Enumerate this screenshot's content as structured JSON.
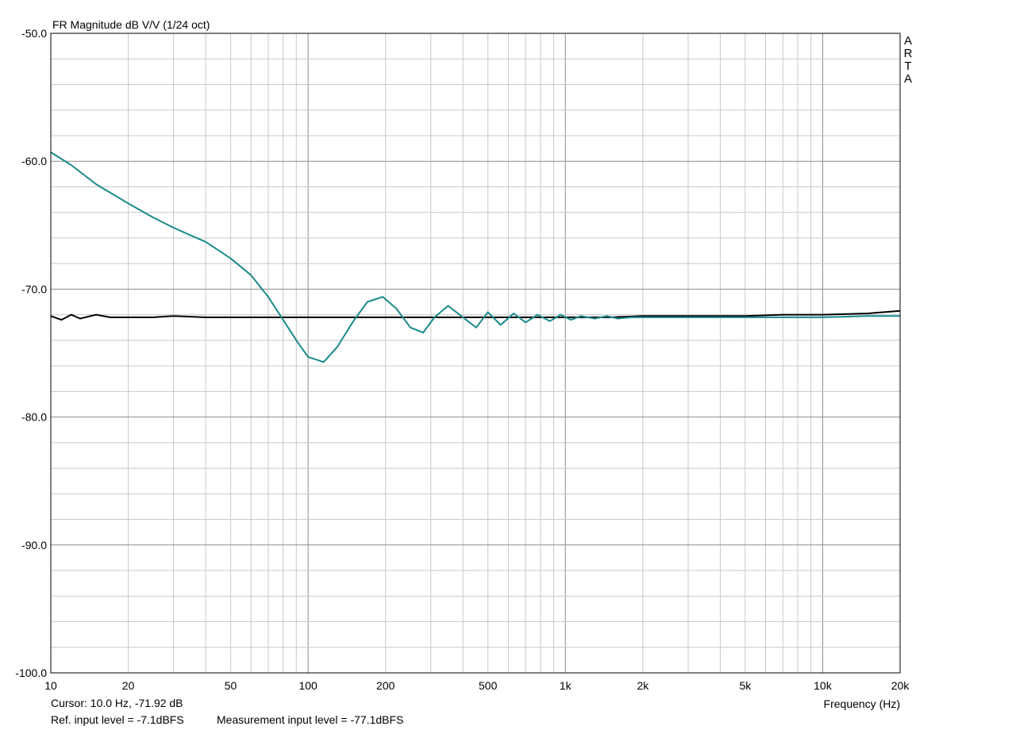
{
  "chart_data": {
    "type": "line",
    "title": "FR Magnitude dB V/V (1/24 oct)",
    "xlabel": "Frequency (Hz)",
    "ylabel": "",
    "x_scale": "log",
    "xlim": [
      10,
      20000
    ],
    "ylim": [
      -100,
      -50
    ],
    "grid": true,
    "x_ticks": [
      10,
      20,
      50,
      100,
      200,
      500,
      1000,
      2000,
      5000,
      10000,
      20000
    ],
    "x_tick_labels": [
      "10",
      "20",
      "50",
      "100",
      "200",
      "500",
      "1k",
      "2k",
      "5k",
      "10k",
      "20k"
    ],
    "y_ticks": [
      -100,
      -90,
      -80,
      -70,
      -60,
      -50
    ],
    "y_tick_labels": [
      "-100.0",
      "-90.0",
      "-80.0",
      "-70.0",
      "-60.0",
      "-50.0"
    ],
    "series": [
      {
        "color": "#000000",
        "x": [
          10,
          11,
          12,
          13,
          15,
          17,
          20,
          25,
          30,
          40,
          50,
          70,
          100,
          150,
          200,
          300,
          500,
          700,
          1000,
          1500,
          2000,
          3000,
          5000,
          7000,
          10000,
          15000,
          20000
        ],
        "y": [
          -72.1,
          -72.4,
          -72.0,
          -72.3,
          -72.0,
          -72.2,
          -72.2,
          -72.2,
          -72.1,
          -72.2,
          -72.2,
          -72.2,
          -72.2,
          -72.2,
          -72.2,
          -72.2,
          -72.2,
          -72.2,
          -72.2,
          -72.2,
          -72.1,
          -72.1,
          -72.1,
          -72.0,
          -72.0,
          -71.9,
          -71.7
        ]
      },
      {
        "color": "#1a8a8a",
        "x": [
          10,
          12,
          15,
          20,
          25,
          30,
          35,
          40,
          50,
          60,
          70,
          80,
          90,
          100,
          115,
          130,
          150,
          170,
          195,
          220,
          250,
          280,
          310,
          350,
          400,
          450,
          500,
          560,
          630,
          700,
          780,
          870,
          960,
          1050,
          1150,
          1300,
          1450,
          1600,
          1800,
          2000,
          2500,
          3000,
          5000,
          7000,
          10000,
          15000,
          20000
        ],
        "y": [
          -59.3,
          -60.3,
          -61.8,
          -63.3,
          -64.4,
          -65.2,
          -65.8,
          -66.3,
          -67.6,
          -68.9,
          -70.6,
          -72.4,
          -74.0,
          -75.3,
          -75.7,
          -74.5,
          -72.5,
          -71.0,
          -70.6,
          -71.5,
          -73.0,
          -73.4,
          -72.2,
          -71.3,
          -72.2,
          -73.0,
          -71.8,
          -72.8,
          -71.9,
          -72.6,
          -72.0,
          -72.5,
          -72.0,
          -72.4,
          -72.1,
          -72.3,
          -72.1,
          -72.3,
          -72.2,
          -72.2,
          -72.2,
          -72.2,
          -72.2,
          -72.2,
          -72.2,
          -72.1,
          -72.1
        ]
      }
    ]
  },
  "cursor_text": "Cursor: 10.0 Hz, -71.92 dB",
  "ref_level_text": "Ref. input level = -7.1dBFS",
  "meas_level_text": "Measurement input level = -77.1dBFS",
  "watermark": [
    "A",
    "R",
    "T",
    "A"
  ]
}
